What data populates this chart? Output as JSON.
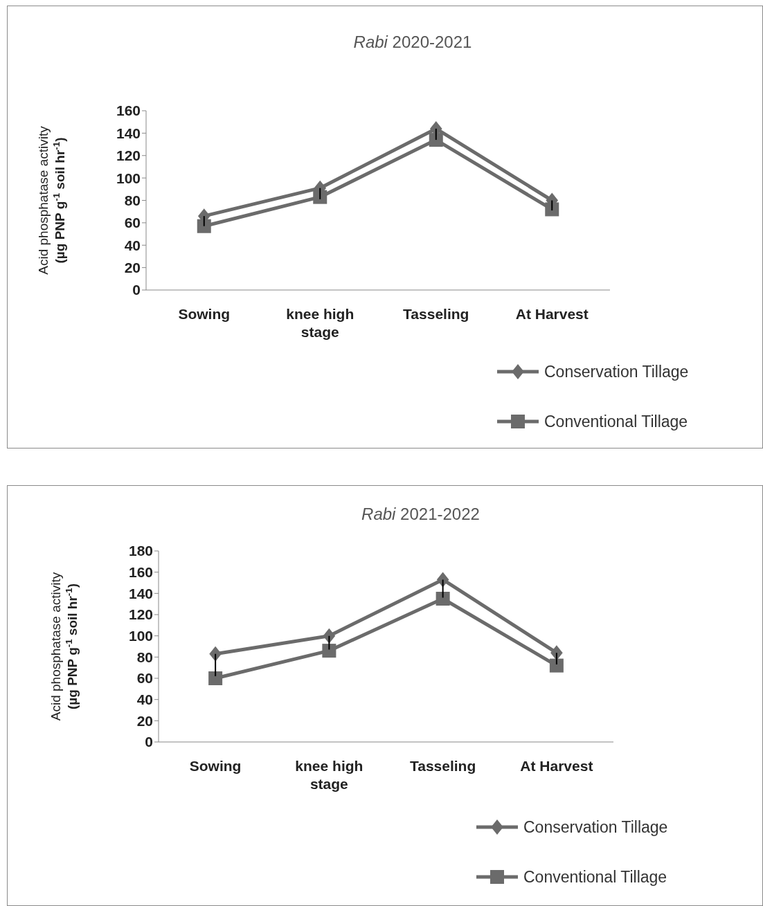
{
  "chart_data": [
    {
      "type": "line",
      "title": "Rabi 2020-2021",
      "ylabel": "Acid phosphatase  activity (µg PNP g$^{-1}$ soil hr$^{-1}$)",
      "categories": [
        "Sowing",
        "knee high stage",
        "Tasseling",
        "At Harvest"
      ],
      "series": [
        {
          "name": "Conservation Tillage",
          "color": "#6b6b6b",
          "marker": "diamond",
          "values": [
            66,
            91,
            144,
            80
          ],
          "errors": [
            [
              57,
              66
            ],
            [
              81,
              91
            ],
            [
              134,
              144
            ],
            [
              71,
              80
            ]
          ]
        },
        {
          "name": "Conventional Tillage",
          "color": "#6b6b6b",
          "marker": "square",
          "values": [
            57,
            83,
            134,
            72
          ]
        }
      ],
      "ylim": [
        0,
        160
      ],
      "yticks": [
        0,
        20,
        40,
        60,
        80,
        100,
        120,
        140,
        160
      ],
      "grid": false,
      "legend": "bottom right",
      "line_style": "solid"
    },
    {
      "type": "line",
      "title": "Rabi 2021-2022",
      "ylabel": "Acid phosphatase  activity (µg PNP g$^{-1}$ soil hr$^{-1}$)",
      "categories": [
        "Sowing",
        "knee high stage",
        "Tasseling",
        "At Harvest"
      ],
      "series": [
        {
          "name": "Conservation Tillage",
          "color": "#6b6b6b",
          "marker": "diamond",
          "values": [
            83,
            100,
            153,
            84
          ],
          "errors": [
            [
              62,
              83
            ],
            [
              87,
              100
            ],
            [
              136,
              153
            ],
            [
              73,
              84
            ]
          ]
        },
        {
          "name": "Conventional Tillage",
          "color": "#6b6b6b",
          "marker": "square",
          "values": [
            60,
            86,
            135,
            72
          ]
        }
      ],
      "ylim": [
        0,
        180
      ],
      "yticks": [
        0,
        20,
        40,
        60,
        80,
        100,
        120,
        140,
        160,
        180
      ],
      "grid": false,
      "legend": "bottom right",
      "line_style": "solid"
    }
  ]
}
